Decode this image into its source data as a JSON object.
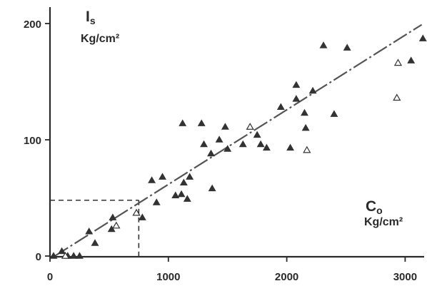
{
  "chart_data": {
    "type": "scatter",
    "xlim": [
      0,
      3200
    ],
    "ylim": [
      0,
      210
    ],
    "x_ticks": [
      {
        "value": 0,
        "label": "0"
      },
      {
        "value": 1000,
        "label": "1000"
      },
      {
        "value": 2000,
        "label": "2000"
      },
      {
        "value": 3000,
        "label": "3000"
      }
    ],
    "y_ticks": [
      {
        "value": 0,
        "label": "0"
      },
      {
        "value": 100,
        "label": "100"
      },
      {
        "value": 200,
        "label": "200"
      }
    ],
    "ylabel": {
      "symbol": "I",
      "subscript": "s",
      "unit": "Kg/cm²"
    },
    "xlabel": {
      "symbol": "C",
      "subscript": "o",
      "unit": "Kg/cm²"
    },
    "grid": false,
    "legend": "none",
    "colors": {
      "axis": "#2a2a2a",
      "marker": "#333333",
      "open_marker": "#ffffff",
      "fit_line": "#555555",
      "reference": "#333333"
    },
    "series": [
      {
        "marker": "filled-triangle",
        "points": [
          [
            30,
            0
          ],
          [
            150,
            0
          ],
          [
            200,
            0
          ],
          [
            250,
            0
          ],
          [
            100,
            4
          ],
          [
            330,
            21
          ],
          [
            380,
            11
          ],
          [
            520,
            23
          ],
          [
            530,
            33
          ],
          [
            780,
            33
          ],
          [
            860,
            65
          ],
          [
            950,
            68
          ],
          [
            900,
            46
          ],
          [
            1060,
            52
          ],
          [
            1110,
            53
          ],
          [
            1130,
            63
          ],
          [
            1160,
            49
          ],
          [
            1120,
            114
          ],
          [
            1180,
            68
          ],
          [
            1280,
            114
          ],
          [
            1300,
            96
          ],
          [
            1360,
            88
          ],
          [
            1370,
            58
          ],
          [
            1430,
            100
          ],
          [
            1480,
            111
          ],
          [
            1500,
            92
          ],
          [
            1630,
            96
          ],
          [
            1750,
            104
          ],
          [
            1780,
            96
          ],
          [
            1830,
            93
          ],
          [
            1950,
            128
          ],
          [
            2030,
            93
          ],
          [
            2080,
            147
          ],
          [
            2080,
            135
          ],
          [
            2150,
            123
          ],
          [
            2160,
            110
          ],
          [
            2220,
            142
          ],
          [
            2310,
            181
          ],
          [
            2400,
            122
          ],
          [
            2510,
            179
          ],
          [
            3050,
            168
          ],
          [
            3150,
            187
          ]
        ]
      },
      {
        "marker": "open-triangle",
        "points": [
          [
            130,
            0
          ],
          [
            560,
            26
          ],
          [
            730,
            37
          ],
          [
            1690,
            111
          ],
          [
            2170,
            91
          ],
          [
            2930,
            136
          ],
          [
            2940,
            166
          ]
        ]
      }
    ],
    "fit_line": {
      "style": "dash-dot",
      "from": [
        40,
        0
      ],
      "to": [
        3140,
        199
      ]
    },
    "reference_point": {
      "x": 750,
      "y": 48,
      "style": "dashed"
    }
  }
}
